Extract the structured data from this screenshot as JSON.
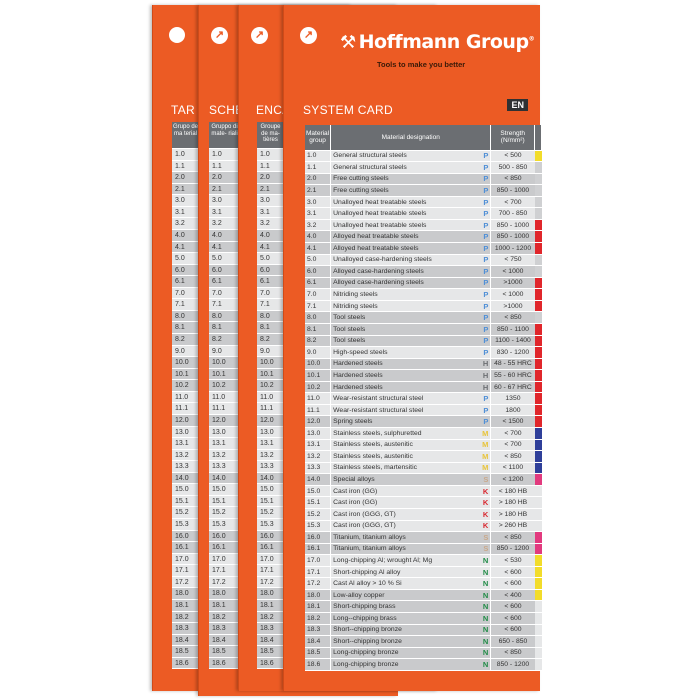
{
  "back_cards": [
    {
      "title": "TAR",
      "group_header": "Grupo de ma terial"
    },
    {
      "title": "SCHE",
      "group_header": "Gruppo di mate- riali"
    },
    {
      "title": "ENCA",
      "group_header": "Groupe de ma- tières"
    }
  ],
  "front_card": {
    "brand": "Hoffmann Group",
    "tagline": "Tools to make you better",
    "title": "SYSTEM CARD",
    "language": "EN",
    "headers": {
      "group": "Material group",
      "designation": "Material designation",
      "strength": "Strength (N/mm²)"
    },
    "letter_colors": {
      "P": "#4f8fd6",
      "H": "#6b6e72",
      "M": "#e8c43a",
      "S": "#c9a88a",
      "K": "#d8262e",
      "N": "#1f8a45"
    },
    "strip_colors": {
      "yellow": "#f2dc2a",
      "grey": "#cfd0d2",
      "red": "#e0262b",
      "blue": "#2f3f9a",
      "pink": "#e23a7e",
      "white": "#e6e7e8"
    },
    "rows": [
      [
        "1.0",
        "General structural steels",
        "P",
        "< 500",
        "yellow"
      ],
      [
        "1.1",
        "General structural steels",
        "P",
        "500 - 850",
        "grey"
      ],
      [
        "2.0",
        "Free cutting steels",
        "P",
        "< 850",
        "grey"
      ],
      [
        "2.1",
        "Free cutting steels",
        "P",
        "850 - 1000",
        "grey"
      ],
      [
        "3.0",
        "Unalloyed heat treatable steels",
        "P",
        "< 700",
        "grey"
      ],
      [
        "3.1",
        "Unalloyed heat treatable steels",
        "P",
        "700 - 850",
        "grey"
      ],
      [
        "3.2",
        "Unalloyed heat treatable steels",
        "P",
        "850 - 1000",
        "red"
      ],
      [
        "4.0",
        "Alloyed heat treatable steels",
        "P",
        "850 - 1000",
        "red"
      ],
      [
        "4.1",
        "Alloyed heat treatable steels",
        "P",
        "1000 - 1200",
        "red"
      ],
      [
        "5.0",
        "Unalloyed case-hardening steels",
        "P",
        "< 750",
        "grey"
      ],
      [
        "6.0",
        "Alloyed case-hardening steels",
        "P",
        "< 1000",
        "grey"
      ],
      [
        "6.1",
        "Alloyed case-hardening steels",
        "P",
        ">1000",
        "red"
      ],
      [
        "7.0",
        "Nitriding steels",
        "P",
        "< 1000",
        "red"
      ],
      [
        "7.1",
        "Nitriding steels",
        "P",
        ">1000",
        "red"
      ],
      [
        "8.0",
        "Tool steels",
        "P",
        "< 850",
        "grey"
      ],
      [
        "8.1",
        "Tool steels",
        "P",
        "850 - 1100",
        "red"
      ],
      [
        "8.2",
        "Tool steels",
        "P",
        "1100 - 1400",
        "red"
      ],
      [
        "9.0",
        "High-speed steels",
        "P",
        "830 - 1200",
        "red"
      ],
      [
        "10.0",
        "Hardened steels",
        "H",
        "48 - 55 HRC",
        "red"
      ],
      [
        "10.1",
        "Hardened steels",
        "H",
        "55 - 60 HRC",
        "red"
      ],
      [
        "10.2",
        "Hardened steels",
        "H",
        "60 - 67 HRC",
        "red"
      ],
      [
        "11.0",
        "Wear-resistant structural steel",
        "P",
        "1350",
        "red"
      ],
      [
        "11.1",
        "Wear-resistant structural steel",
        "P",
        "1800",
        "red"
      ],
      [
        "12.0",
        "Spring steels",
        "P",
        "< 1500",
        "red"
      ],
      [
        "13.0",
        "Stainless steels, sulphuretted",
        "M",
        "< 700",
        "blue"
      ],
      [
        "13.1",
        "Stainless steels, austenitic",
        "M",
        "< 700",
        "blue"
      ],
      [
        "13.2",
        "Stainless steels, austenitic",
        "M",
        "< 850",
        "blue"
      ],
      [
        "13.3",
        "Stainless steels, martensitic",
        "M",
        "< 1100",
        "blue"
      ],
      [
        "14.0",
        "Special alloys",
        "S",
        "< 1200",
        "pink"
      ],
      [
        "15.0",
        "Cast iron (GG)",
        "K",
        "< 180 HB",
        "white"
      ],
      [
        "15.1",
        "Cast iron (GG)",
        "K",
        "> 180 HB",
        "white"
      ],
      [
        "15.2",
        "Cast iron (GGG, GT)",
        "K",
        "> 180 HB",
        "white"
      ],
      [
        "15.3",
        "Cast iron (GGG, GT)",
        "K",
        "> 260 HB",
        "white"
      ],
      [
        "16.0",
        "Titanium, titanium alloys",
        "S",
        "< 850",
        "pink"
      ],
      [
        "16.1",
        "Titanium, titanium alloys",
        "S",
        "850 - 1200",
        "pink"
      ],
      [
        "17.0",
        "Long-chipping Al; wrought Al; Mg",
        "N",
        "< 530",
        "yellow"
      ],
      [
        "17.1",
        "Short-chipping Al alloy",
        "N",
        "< 600",
        "yellow"
      ],
      [
        "17.2",
        "Cast Al alloy > 10 % Si",
        "N",
        "< 600",
        "yellow"
      ],
      [
        "18.0",
        "Low-alloy copper",
        "N",
        "< 400",
        "yellow"
      ],
      [
        "18.1",
        "Short-chipping brass",
        "N",
        "< 600",
        "white"
      ],
      [
        "18.2",
        "Long--chipping brass",
        "N",
        "< 600",
        "white"
      ],
      [
        "18.3",
        "Short--chipping bronze",
        "N",
        "< 600",
        "white"
      ],
      [
        "18.4",
        "Short--chipping bronze",
        "N",
        "650 - 850",
        "white"
      ],
      [
        "18.5",
        "Long-chipping bronze",
        "N",
        "< 850",
        "white"
      ],
      [
        "18.6",
        "Long-chipping bronze",
        "N",
        "850 - 1200",
        "white"
      ]
    ]
  }
}
